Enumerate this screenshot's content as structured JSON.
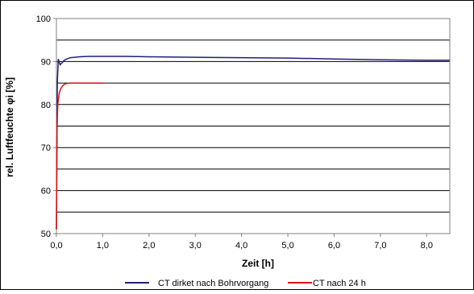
{
  "chart_data": {
    "type": "line",
    "xlabel": "Zeit [h]",
    "ylabel": "rel. Luftfeuchte φi [%]",
    "xlim": [
      0,
      8.5
    ],
    "ylim": [
      50,
      100
    ],
    "x_ticks": [
      "0,0",
      "1,0",
      "2,0",
      "3,0",
      "4,0",
      "5,0",
      "6,0",
      "7,0",
      "8,0"
    ],
    "x_tick_values": [
      0,
      1,
      2,
      3,
      4,
      5,
      6,
      7,
      8
    ],
    "y_ticks": [
      "50",
      "60",
      "70",
      "80",
      "90",
      "100"
    ],
    "y_tick_values": [
      50,
      60,
      70,
      80,
      90,
      100
    ],
    "gridlines_y": [
      55,
      60,
      65,
      70,
      75,
      80,
      85,
      90,
      95
    ],
    "grid": true,
    "legend_position": "bottom",
    "series": [
      {
        "name": "CT dirket nach Bohrvorgang",
        "color": "#1f1f7a",
        "x": [
          0.0,
          0.02,
          0.04,
          0.06,
          0.08,
          0.1,
          0.13,
          0.16,
          0.2,
          0.25,
          0.3,
          0.4,
          0.5,
          0.7,
          1.0,
          1.5,
          2.0,
          3.0,
          4.0,
          5.0,
          6.0,
          7.0,
          8.0,
          8.5
        ],
        "y": [
          51.0,
          85.0,
          90.5,
          90.0,
          89.2,
          89.5,
          89.8,
          90.2,
          90.5,
          90.7,
          90.9,
          91.0,
          91.1,
          91.2,
          91.2,
          91.2,
          91.1,
          91.0,
          90.9,
          90.8,
          90.6,
          90.4,
          90.3,
          90.3
        ]
      },
      {
        "name": "CT nach 24 h",
        "color": "#e01010",
        "x": [
          0.0,
          0.01,
          0.02,
          0.03,
          0.05,
          0.07,
          0.1,
          0.13,
          0.17,
          0.22,
          0.3,
          0.4,
          0.5,
          0.7,
          1.0
        ],
        "y": [
          51.0,
          72.0,
          77.0,
          80.0,
          82.0,
          83.0,
          83.8,
          84.3,
          84.7,
          84.9,
          85.0,
          85.0,
          85.0,
          85.0,
          85.0
        ]
      }
    ]
  }
}
